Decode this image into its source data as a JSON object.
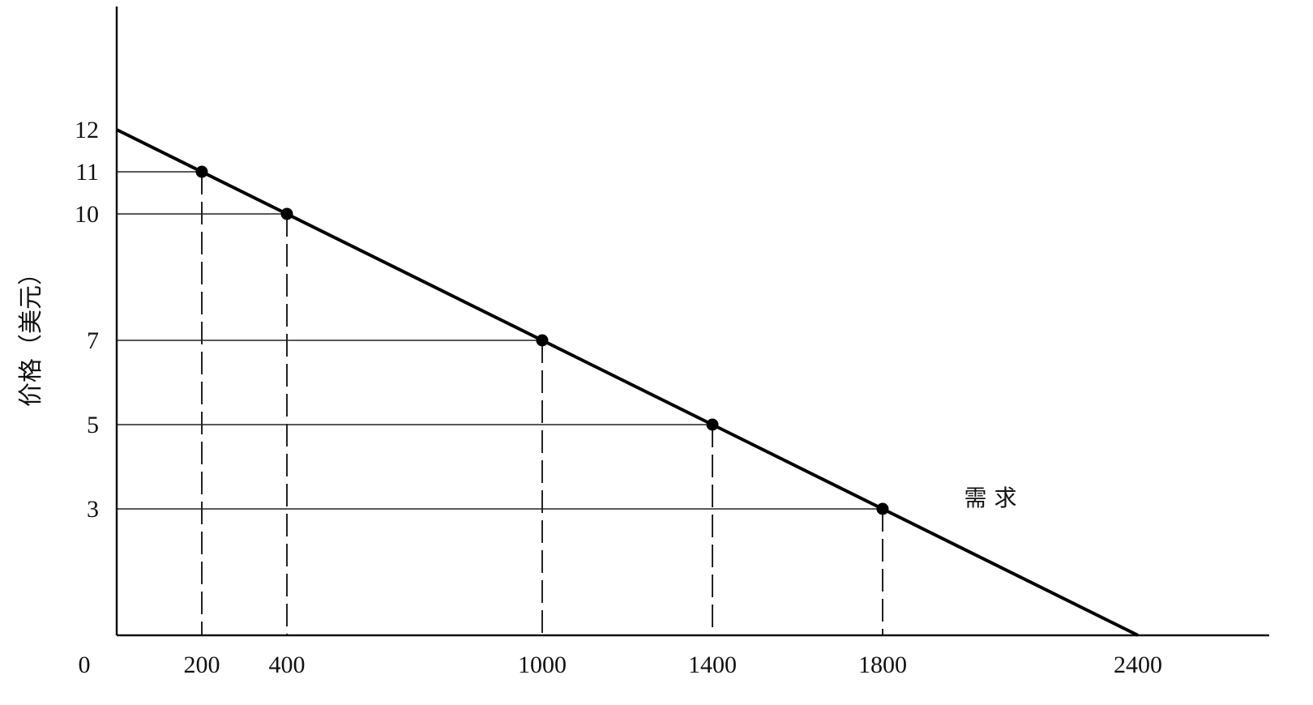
{
  "chart_data": {
    "type": "line",
    "title": "",
    "xlabel": "",
    "ylabel": "价格（美元）",
    "xlim": [
      0,
      2800
    ],
    "ylim": [
      0,
      15
    ],
    "grid": false,
    "x_ticks": [
      "0",
      "200",
      "400",
      "1000",
      "1400",
      "1800",
      "2400"
    ],
    "y_ticks": [
      "3",
      "5",
      "7",
      "10",
      "11",
      "12"
    ],
    "series": [
      {
        "name": "需 求",
        "x": [
          0,
          2400
        ],
        "y": [
          12,
          0
        ]
      }
    ],
    "points": [
      {
        "x": 200,
        "y": 11
      },
      {
        "x": 400,
        "y": 10
      },
      {
        "x": 1000,
        "y": 7
      },
      {
        "x": 1400,
        "y": 5
      },
      {
        "x": 1800,
        "y": 3
      }
    ]
  }
}
